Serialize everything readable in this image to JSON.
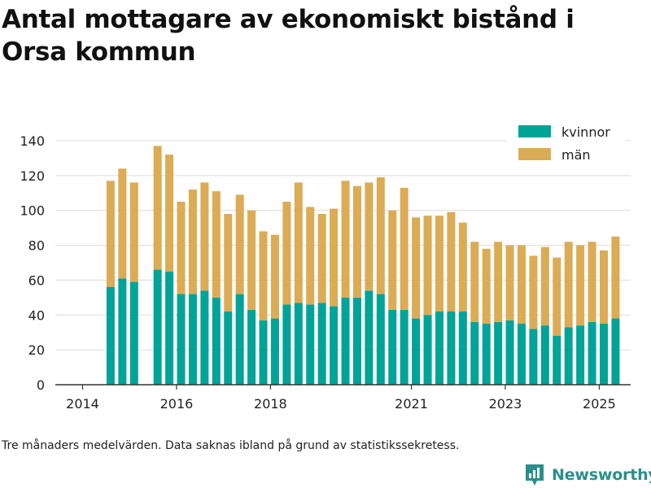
{
  "title": "Antal mottagare av ekonomiskt bistånd i Orsa kommun",
  "footnote": "Tre månaders medelvärden. Data saknas ibland på grund av statistikssekretess.",
  "brand": {
    "name": "Newsworthy"
  },
  "colors": {
    "kvinnor": "#00a398",
    "man": "#dbac55",
    "axis": "#333333",
    "grid": "#dcdcdc"
  },
  "chart_data": {
    "type": "bar",
    "stacked": true,
    "title": "Antal mottagare av ekonomiskt bistånd i Orsa kommun",
    "ylim": [
      0,
      140
    ],
    "yticks": [
      0,
      20,
      40,
      60,
      80,
      100,
      120,
      140
    ],
    "xtick_labels": [
      "2014",
      "2016",
      "2018",
      "2021",
      "2023",
      "2025"
    ],
    "grid": true,
    "legend_position": "top-right",
    "series_names": [
      "kvinnor",
      "män"
    ],
    "categories": [
      "2014-01",
      "2014-04",
      "2014-07",
      "2014-10",
      "2015-01",
      "2015-04",
      "2015-07",
      "2015-10",
      "2016-01",
      "2016-04",
      "2016-07",
      "2016-10",
      "2017-01",
      "2017-04",
      "2017-07",
      "2017-10",
      "2018-01",
      "2018-04",
      "2018-07",
      "2018-10",
      "2019-01",
      "2019-04",
      "2019-07",
      "2019-10",
      "2020-01",
      "2020-04",
      "2020-07",
      "2020-10",
      "2021-01",
      "2021-04",
      "2021-07",
      "2021-10",
      "2022-01",
      "2022-04",
      "2022-07",
      "2022-10",
      "2023-01",
      "2023-04",
      "2023-07",
      "2023-10",
      "2024-01",
      "2024-04",
      "2024-07",
      "2024-10",
      "2025-01"
    ],
    "kvinnor": [
      null,
      56,
      61,
      59,
      null,
      66,
      65,
      52,
      52,
      54,
      50,
      42,
      52,
      43,
      37,
      38,
      46,
      47,
      46,
      47,
      45,
      50,
      50,
      54,
      52,
      43,
      43,
      38,
      40,
      42,
      42,
      42,
      36,
      35,
      36,
      37,
      35,
      32,
      34,
      28,
      33,
      34,
      36,
      35,
      38
    ],
    "man": [
      null,
      61,
      63,
      57,
      null,
      71,
      67,
      53,
      60,
      62,
      61,
      56,
      57,
      57,
      51,
      48,
      59,
      69,
      56,
      51,
      56,
      67,
      64,
      62,
      67,
      57,
      70,
      58,
      57,
      55,
      57,
      51,
      46,
      43,
      46,
      43,
      45,
      42,
      45,
      45,
      49,
      46,
      46,
      42,
      47
    ]
  }
}
